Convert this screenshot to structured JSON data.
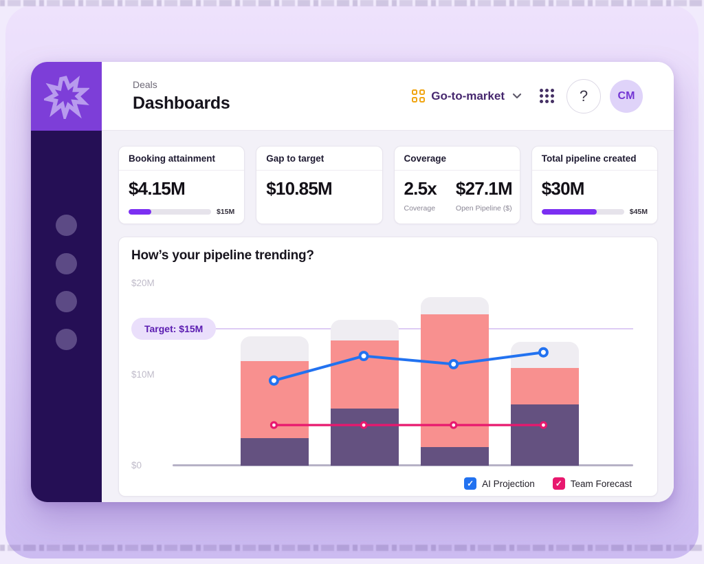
{
  "window": {
    "breadcrumb": "Deals",
    "title": "Dashboards",
    "workspace_switcher": {
      "label": "Go-to-market"
    },
    "help_glyph": "?",
    "avatar_initials": "CM"
  },
  "kpi_cards": [
    {
      "title": "Booking attainment",
      "value": "$4.15M",
      "progress": {
        "current": 4.15,
        "target": 15,
        "target_label": "$15M"
      }
    },
    {
      "title": "Gap to target",
      "value": "$10.85M"
    },
    {
      "title": "Coverage",
      "metrics": [
        {
          "value": "2.5x",
          "label": "Coverage"
        },
        {
          "value": "$27.1M",
          "label": "Open Pipeline ($)"
        }
      ]
    },
    {
      "title": "Total pipeline created",
      "value": "$30M",
      "progress": {
        "current": 30,
        "target": 45,
        "target_label": "$45M"
      }
    }
  ],
  "chart_data": {
    "type": "bar",
    "subtype": "stacked-bars-with-overlay-lines",
    "title": "How’s your pipeline trending?",
    "y_unit": "$M",
    "ylim": [
      0,
      20
    ],
    "grid": false,
    "y_ticks": [
      {
        "label": "$20M",
        "value": 20
      },
      {
        "label": "$10M",
        "value": 10
      },
      {
        "label": "$0",
        "value": 0
      }
    ],
    "target": {
      "label": "Target: $15M",
      "value": 15
    },
    "categories": [
      "",
      "",
      "",
      ""
    ],
    "stacked_bars": {
      "bottom_segment": {
        "color": "#645180",
        "top_values": [
          3.0,
          6.3,
          2.0,
          6.7
        ]
      },
      "middle_segment": {
        "color": "#f8908f",
        "top_values": [
          11.5,
          13.7,
          16.6,
          10.7
        ]
      },
      "cap_segment": {
        "color": "#efedf2",
        "top_values": [
          14.2,
          16.0,
          18.5,
          13.6
        ]
      }
    },
    "series": [
      {
        "name": "AI Projection",
        "type": "line",
        "color": "#2272f0",
        "values": [
          9.3,
          12.0,
          11.1,
          12.4
        ]
      },
      {
        "name": "Team Forecast",
        "type": "line",
        "color": "#e8186e",
        "values": [
          4.4,
          4.4,
          4.4,
          4.4
        ]
      }
    ],
    "legend": [
      {
        "label": "AI Projection",
        "color": "#2272f0"
      },
      {
        "label": "Team Forecast",
        "color": "#e8186e"
      }
    ],
    "legend_position": "bottom-right"
  },
  "colors": {
    "accent_purple": "#7b2ff2",
    "logo_purple": "#7d3ed8",
    "sidebar_purple": "#250f55",
    "gtm_yellow": "#f0a513",
    "target_pill_bg": "#eadffb",
    "target_pill_text": "#5a1bb0"
  }
}
